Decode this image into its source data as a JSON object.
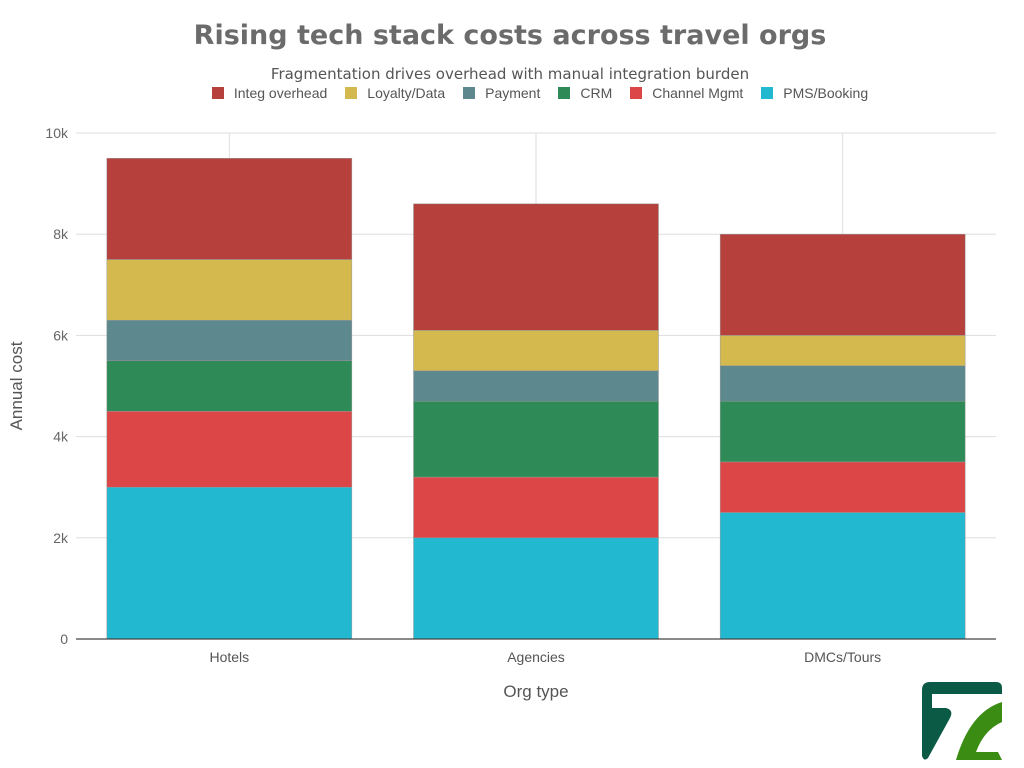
{
  "chart_data": {
    "type": "bar",
    "stacked": true,
    "title": "Rising tech stack costs across travel orgs",
    "subtitle": "Fragmentation drives overhead with manual integration burden",
    "xlabel": "Org type",
    "ylabel": "Annual cost",
    "ylim": [
      0,
      10000
    ],
    "yticks": [
      0,
      2000,
      4000,
      6000,
      8000,
      10000
    ],
    "ytick_labels": [
      "0",
      "2k",
      "4k",
      "6k",
      "8k",
      "10k"
    ],
    "categories": [
      "Hotels",
      "Agencies",
      "DMCs/Tours"
    ],
    "grid": true,
    "legend_position": "top",
    "series": [
      {
        "name": "PMS/Booking",
        "color": "#22b8cf",
        "values": [
          3000,
          2000,
          2500
        ]
      },
      {
        "name": "Channel Mgmt",
        "color": "#dc4646",
        "values": [
          1500,
          1200,
          1000
        ]
      },
      {
        "name": "CRM",
        "color": "#2e8b57",
        "values": [
          1000,
          1500,
          1200
        ]
      },
      {
        "name": "Payment",
        "color": "#5c888e",
        "values": [
          800,
          600,
          700
        ]
      },
      {
        "name": "Loyalty/Data",
        "color": "#d4b94f",
        "values": [
          1200,
          800,
          600
        ]
      },
      {
        "name": "Integ overhead",
        "color": "#b5403c",
        "values": [
          2000,
          2500,
          2000
        ]
      }
    ]
  },
  "legend_order": [
    5,
    4,
    3,
    2,
    1,
    0
  ],
  "logo": {
    "primary": "#0b5a45",
    "secondary": "#3a8d12"
  }
}
